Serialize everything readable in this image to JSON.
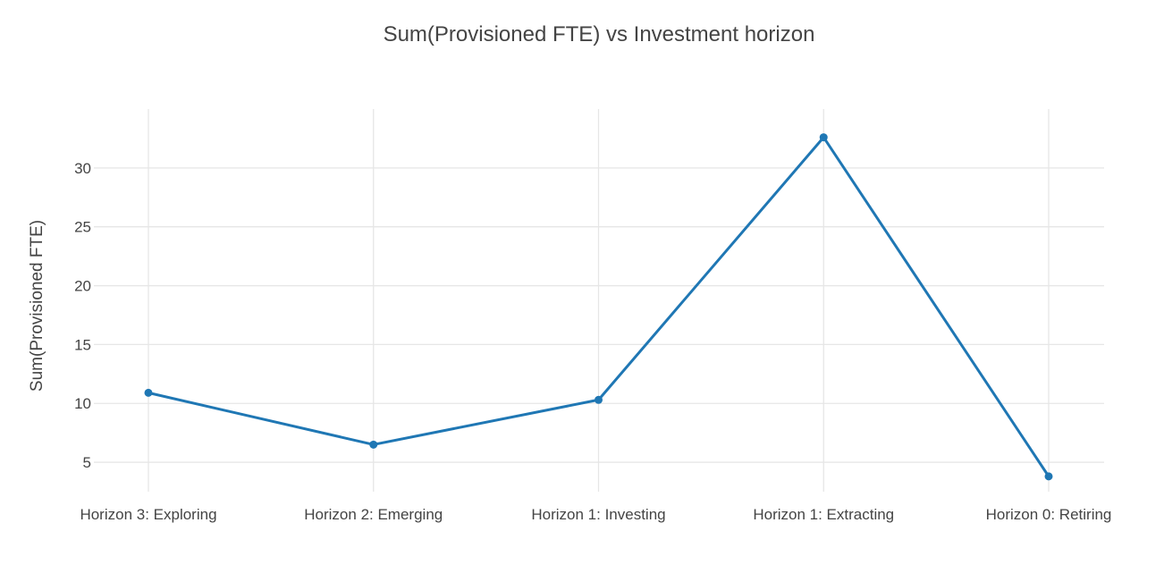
{
  "chart_data": {
    "type": "line",
    "title": "Sum(Provisioned FTE) vs Investment horizon",
    "xlabel": "",
    "ylabel": "Sum(Provisioned FTE)",
    "categories": [
      "Horizon 3: Exploring",
      "Horizon 2: Emerging",
      "Horizon 1: Investing",
      "Horizon 1: Extracting",
      "Horizon 0: Retiring"
    ],
    "series": [
      {
        "values": [
          10.9,
          6.5,
          10.3,
          32.6,
          3.8
        ],
        "color": "#1f77b4"
      }
    ],
    "yticks": [
      5,
      10,
      15,
      20,
      25,
      30
    ],
    "ylim": [
      2.5,
      35
    ],
    "grid": true,
    "legend": "none"
  }
}
